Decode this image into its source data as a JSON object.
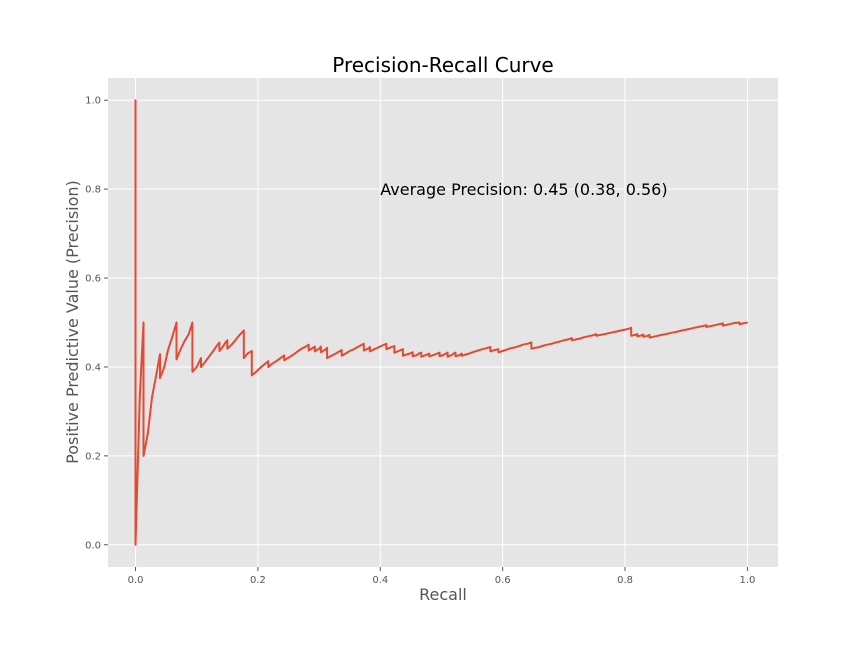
{
  "chart_data": {
    "type": "line",
    "title": "Precision-Recall Curve",
    "xlabel": "Recall",
    "ylabel": "Positive Predictive Value (Precision)",
    "xlim": [
      -0.045,
      1.05
    ],
    "ylim": [
      -0.05,
      1.05
    ],
    "xticks": [
      0.0,
      0.2,
      0.4,
      0.6,
      0.8,
      1.0
    ],
    "yticks": [
      0.0,
      0.2,
      0.4,
      0.6,
      0.8,
      1.0
    ],
    "xtick_labels": [
      "0.0",
      "0.2",
      "0.4",
      "0.6",
      "0.8",
      "1.0"
    ],
    "ytick_labels": [
      "0.0",
      "0.2",
      "0.4",
      "0.6",
      "0.8",
      "1.0"
    ],
    "grid": true,
    "annotation": {
      "text": "Average Precision: 0.45 (0.38, 0.56)",
      "x": 0.4,
      "y": 0.8
    },
    "colors": {
      "line": "#e24a33",
      "plot_bg": "#e5e5e5",
      "grid": "#ffffff"
    },
    "series": [
      {
        "x": [
          0.0,
          0.0,
          0.0,
          0.007,
          0.013,
          0.013,
          0.02,
          0.027,
          0.033,
          0.04,
          0.04,
          0.047,
          0.053,
          0.06,
          0.067,
          0.067,
          0.073,
          0.08,
          0.087,
          0.093,
          0.093,
          0.1,
          0.107,
          0.107,
          0.113,
          0.12,
          0.127,
          0.133,
          0.137,
          0.137,
          0.143,
          0.147,
          0.15,
          0.15,
          0.157,
          0.163,
          0.17,
          0.177,
          0.177,
          0.183,
          0.19,
          0.19,
          0.197,
          0.203,
          0.21,
          0.217,
          0.217,
          0.223,
          0.23,
          0.237,
          0.243,
          0.243,
          0.25,
          0.257,
          0.263,
          0.27,
          0.277,
          0.283,
          0.283,
          0.29,
          0.293,
          0.293,
          0.3,
          0.303,
          0.303,
          0.31,
          0.313,
          0.313,
          0.32,
          0.327,
          0.333,
          0.337,
          0.337,
          0.343,
          0.35,
          0.357,
          0.363,
          0.37,
          0.373,
          0.373,
          0.38,
          0.383,
          0.383,
          0.39,
          0.397,
          0.403,
          0.41,
          0.41,
          0.417,
          0.423,
          0.423,
          0.43,
          0.437,
          0.437,
          0.443,
          0.45,
          0.453,
          0.453,
          0.46,
          0.463,
          0.467,
          0.467,
          0.473,
          0.48,
          0.48,
          0.487,
          0.493,
          0.497,
          0.497,
          0.503,
          0.507,
          0.51,
          0.51,
          0.517,
          0.52,
          0.523,
          0.523,
          0.53,
          0.533,
          0.533,
          0.54,
          0.547,
          0.553,
          0.56,
          0.567,
          0.573,
          0.58,
          0.58,
          0.587,
          0.593,
          0.593,
          0.6,
          0.607,
          0.613,
          0.62,
          0.627,
          0.633,
          0.64,
          0.647,
          0.647,
          0.653,
          0.66,
          0.667,
          0.673,
          0.68,
          0.687,
          0.693,
          0.7,
          0.707,
          0.713,
          0.713,
          0.72,
          0.727,
          0.733,
          0.74,
          0.747,
          0.753,
          0.753,
          0.76,
          0.767,
          0.773,
          0.78,
          0.787,
          0.793,
          0.8,
          0.807,
          0.81,
          0.81,
          0.817,
          0.82,
          0.82,
          0.827,
          0.83,
          0.83,
          0.837,
          0.84,
          0.84,
          0.847,
          0.853,
          0.86,
          0.867,
          0.873,
          0.88,
          0.887,
          0.893,
          0.9,
          0.907,
          0.913,
          0.92,
          0.927,
          0.933,
          0.933,
          0.94,
          0.947,
          0.953,
          0.96,
          0.96,
          0.967,
          0.973,
          0.98,
          0.987,
          0.987,
          0.993,
          1.0
        ],
        "y": [
          0.0,
          1.0,
          0.0,
          0.333,
          0.5,
          0.2,
          0.25,
          0.333,
          0.375,
          0.429,
          0.375,
          0.4,
          0.438,
          0.467,
          0.5,
          0.417,
          0.438,
          0.458,
          0.474,
          0.5,
          0.389,
          0.4,
          0.42,
          0.4,
          0.41,
          0.423,
          0.436,
          0.448,
          0.455,
          0.436,
          0.446,
          0.455,
          0.46,
          0.441,
          0.45,
          0.46,
          0.472,
          0.482,
          0.42,
          0.43,
          0.436,
          0.381,
          0.389,
          0.397,
          0.405,
          0.413,
          0.4,
          0.407,
          0.413,
          0.42,
          0.426,
          0.415,
          0.421,
          0.427,
          0.433,
          0.44,
          0.445,
          0.45,
          0.437,
          0.443,
          0.446,
          0.435,
          0.441,
          0.446,
          0.433,
          0.439,
          0.443,
          0.42,
          0.425,
          0.43,
          0.435,
          0.438,
          0.425,
          0.43,
          0.436,
          0.44,
          0.445,
          0.45,
          0.452,
          0.437,
          0.441,
          0.445,
          0.435,
          0.44,
          0.444,
          0.448,
          0.452,
          0.44,
          0.444,
          0.447,
          0.432,
          0.436,
          0.44,
          0.425,
          0.428,
          0.431,
          0.433,
          0.424,
          0.427,
          0.43,
          0.432,
          0.423,
          0.426,
          0.43,
          0.424,
          0.427,
          0.43,
          0.432,
          0.424,
          0.427,
          0.43,
          0.432,
          0.423,
          0.427,
          0.43,
          0.432,
          0.424,
          0.427,
          0.43,
          0.425,
          0.428,
          0.431,
          0.434,
          0.437,
          0.44,
          0.442,
          0.445,
          0.435,
          0.438,
          0.44,
          0.433,
          0.436,
          0.439,
          0.442,
          0.444,
          0.447,
          0.45,
          0.452,
          0.455,
          0.441,
          0.443,
          0.445,
          0.448,
          0.45,
          0.452,
          0.455,
          0.457,
          0.46,
          0.462,
          0.465,
          0.46,
          0.462,
          0.464,
          0.467,
          0.469,
          0.471,
          0.474,
          0.47,
          0.472,
          0.474,
          0.476,
          0.478,
          0.48,
          0.482,
          0.484,
          0.486,
          0.488,
          0.47,
          0.472,
          0.474,
          0.469,
          0.471,
          0.473,
          0.468,
          0.47,
          0.472,
          0.466,
          0.468,
          0.47,
          0.472,
          0.474,
          0.476,
          0.478,
          0.48,
          0.482,
          0.484,
          0.486,
          0.488,
          0.49,
          0.492,
          0.494,
          0.49,
          0.492,
          0.494,
          0.496,
          0.498,
          0.493,
          0.495,
          0.497,
          0.499,
          0.5,
          0.496,
          0.498,
          0.5
        ]
      }
    ]
  }
}
